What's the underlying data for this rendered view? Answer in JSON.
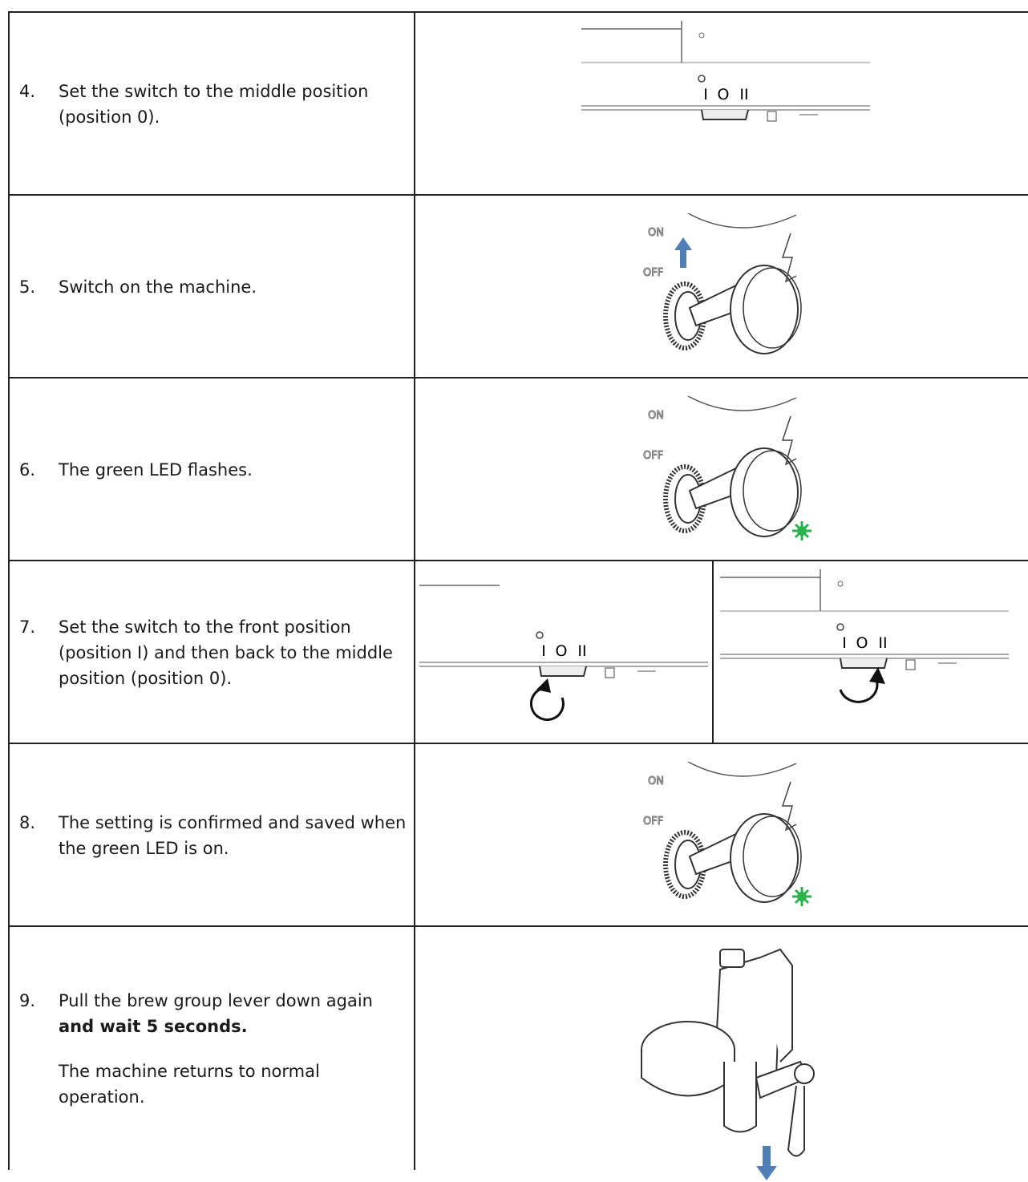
{
  "rows": [
    {
      "number": "4.",
      "text": "Set the switch to the middle position (position 0)."
    },
    {
      "number": "5.",
      "text": "Switch on the machine."
    },
    {
      "number": "6.",
      "text": "The green LED flashes."
    },
    {
      "number": "7.",
      "text": "Set the switch to the front position (position I) and then back to the middle position (position 0)."
    },
    {
      "number": "8.",
      "text": "The setting is confirmed and saved when the green LED is on."
    },
    {
      "number": "9.",
      "text": "Pull the brew group lever down again ",
      "text_bold": "and wait 5 seconds.",
      "note": "The machine returns to normal operation."
    }
  ],
  "illustration_labels": {
    "switch_positions": [
      "I",
      "O",
      "II"
    ],
    "on": "ON",
    "off": "OFF"
  }
}
